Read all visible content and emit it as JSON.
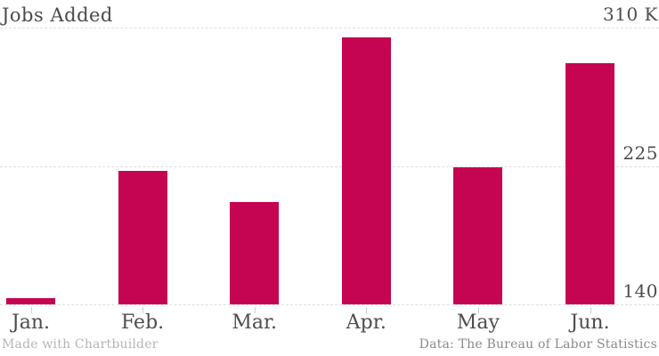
{
  "header": {
    "title": "Jobs Added"
  },
  "footer": {
    "credit_left": "Made with Chartbuilder",
    "credit_right": "Data: The Bureau of Labor Statistics"
  },
  "colors": {
    "bar": "#c50452",
    "grid": "#dedede",
    "title_text": "#4a4a4a",
    "axis_text": "#4d4d4d",
    "tick_mark": "#cfcfcf",
    "credit_left": "#b5b5b5",
    "credit_right": "#8a8a8a",
    "background": "#ffffff"
  },
  "chart_data": {
    "type": "bar",
    "title": "Jobs Added",
    "categories": [
      "Jan.",
      "Feb.",
      "Mar.",
      "Apr.",
      "May",
      "Jun."
    ],
    "values": [
      144,
      222,
      203,
      304,
      224,
      288
    ],
    "unit": "K (thousands of jobs)",
    "xlabel": "",
    "ylabel": "Jobs Added",
    "ylim": [
      140,
      310
    ],
    "yticks": [
      {
        "value": 140,
        "label": "140"
      },
      {
        "value": 225,
        "label": "225"
      },
      {
        "value": 310,
        "label": "310 K"
      }
    ],
    "grid": "horizontal-dashed",
    "legend": "none",
    "bar_color": "#c50452"
  }
}
